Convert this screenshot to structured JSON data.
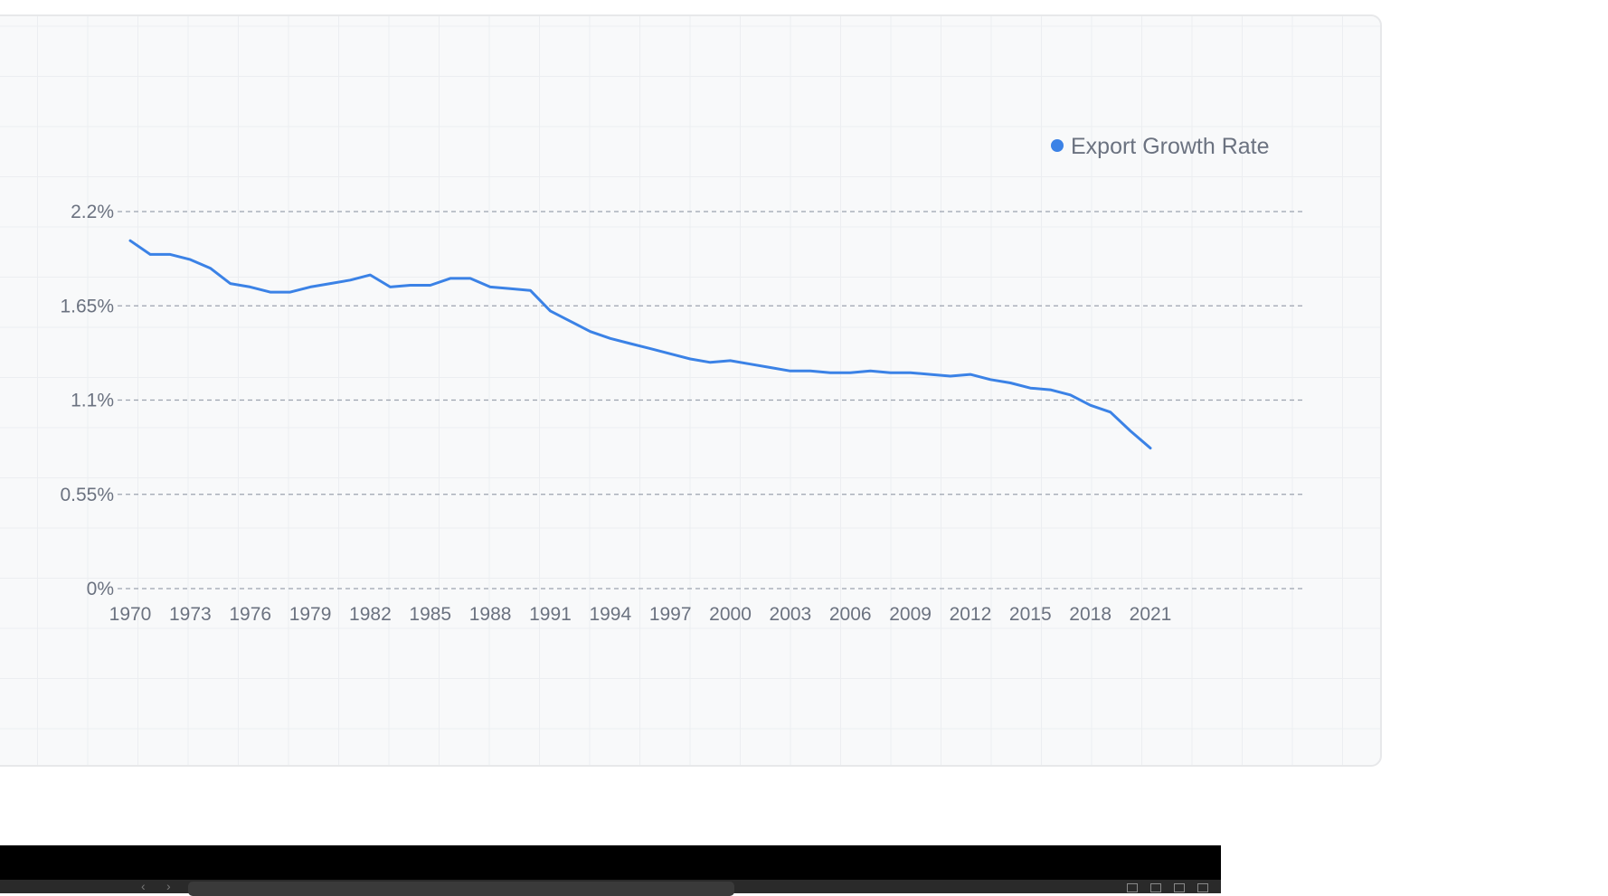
{
  "chart_data": {
    "type": "line",
    "x": [
      1970,
      1971,
      1972,
      1973,
      1974,
      1975,
      1976,
      1977,
      1978,
      1979,
      1980,
      1981,
      1982,
      1983,
      1984,
      1985,
      1986,
      1987,
      1988,
      1989,
      1990,
      1991,
      1992,
      1993,
      1994,
      1995,
      1996,
      1997,
      1998,
      1999,
      2000,
      2001,
      2002,
      2003,
      2004,
      2005,
      2006,
      2007,
      2008,
      2009,
      2010,
      2011,
      2012,
      2013,
      2014,
      2015,
      2016,
      2017,
      2018,
      2019,
      2020,
      2021
    ],
    "series": [
      {
        "name": "Export Growth Rate",
        "color": "#3b82e6",
        "values": [
          2.03,
          1.95,
          1.95,
          1.92,
          1.87,
          1.78,
          1.76,
          1.73,
          1.73,
          1.76,
          1.78,
          1.8,
          1.83,
          1.76,
          1.77,
          1.77,
          1.81,
          1.81,
          1.76,
          1.75,
          1.74,
          1.62,
          1.56,
          1.5,
          1.46,
          1.43,
          1.4,
          1.37,
          1.34,
          1.32,
          1.33,
          1.31,
          1.29,
          1.27,
          1.27,
          1.26,
          1.26,
          1.27,
          1.26,
          1.26,
          1.25,
          1.24,
          1.25,
          1.22,
          1.2,
          1.17,
          1.16,
          1.13,
          1.07,
          1.03,
          0.92,
          0.82
        ]
      }
    ],
    "x_ticks": [
      "1970",
      "1973",
      "1976",
      "1979",
      "1982",
      "1985",
      "1988",
      "1991",
      "1994",
      "1997",
      "2000",
      "2003",
      "2006",
      "2009",
      "2012",
      "2015",
      "2018",
      "2021"
    ],
    "y_ticks": [
      {
        "value": 0,
        "label": "0%"
      },
      {
        "value": 0.55,
        "label": "0.55%"
      },
      {
        "value": 1.1,
        "label": "1.1%"
      },
      {
        "value": 1.65,
        "label": "1.65%"
      },
      {
        "value": 2.2,
        "label": "2.2%"
      }
    ],
    "xlim": [
      1970,
      2021
    ],
    "ylim": [
      0,
      2.2
    ],
    "legend_position": "top-right",
    "grid": true,
    "title": "",
    "xlabel": "",
    "ylabel": ""
  },
  "colors": {
    "card_background": "#f8f9fa",
    "line": "#3b82e6",
    "gridline": "#9ca3af",
    "tick_text": "#6b7280"
  }
}
